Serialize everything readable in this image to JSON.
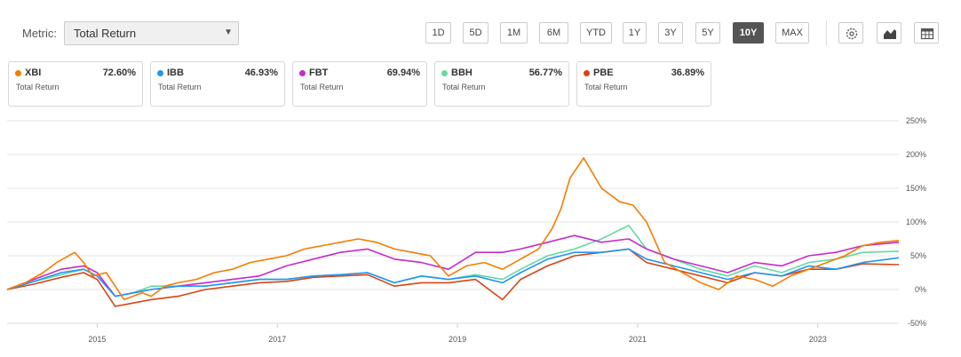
{
  "metric": {
    "label": "Metric:",
    "value": "Total Return"
  },
  "ranges": [
    "1D",
    "5D",
    "1M",
    "6M",
    "YTD",
    "1Y",
    "3Y",
    "5Y",
    "10Y",
    "MAX"
  ],
  "active_range": "10Y",
  "tools": [
    {
      "name": "settings-gear-icon"
    },
    {
      "name": "chart-type-icon"
    },
    {
      "name": "table-view-icon"
    }
  ],
  "legend": [
    {
      "ticker": "XBI",
      "value": "72.60%",
      "sub": "Total Return",
      "color": "#f57c00"
    },
    {
      "ticker": "IBB",
      "value": "46.93%",
      "sub": "Total Return",
      "color": "#2196f3"
    },
    {
      "ticker": "FBT",
      "value": "69.94%",
      "sub": "Total Return",
      "color": "#c62bc9"
    },
    {
      "ticker": "BBH",
      "value": "56.77%",
      "sub": "Total Return",
      "color": "#66d9a0"
    },
    {
      "ticker": "PBE",
      "value": "36.89%",
      "sub": "Total Return",
      "color": "#d84315"
    }
  ],
  "chart_data": {
    "type": "line",
    "x_ticks": [
      "2015",
      "2017",
      "2019",
      "2021",
      "2023"
    ],
    "y_ticks": [
      "250%",
      "200%",
      "150%",
      "100%",
      "50%",
      "0%",
      "-50%"
    ],
    "ylim": [
      -50,
      250
    ],
    "xlim": [
      2014.0,
      2023.9
    ],
    "grid": true,
    "series": [
      {
        "name": "XBI",
        "color": "#f57c00",
        "x": [
          2014.0,
          2014.2,
          2014.4,
          2014.55,
          2014.75,
          2014.85,
          2014.95,
          2015.1,
          2015.3,
          2015.5,
          2015.6,
          2015.75,
          2015.9,
          2016.1,
          2016.3,
          2016.5,
          2016.7,
          2016.9,
          2017.1,
          2017.3,
          2017.5,
          2017.7,
          2017.9,
          2018.1,
          2018.3,
          2018.5,
          2018.7,
          2018.9,
          2019.1,
          2019.3,
          2019.5,
          2019.7,
          2019.9,
          2020.05,
          2020.15,
          2020.25,
          2020.4,
          2020.6,
          2020.8,
          2020.95,
          2021.1,
          2021.3,
          2021.5,
          2021.7,
          2021.9,
          2022.1,
          2022.3,
          2022.5,
          2022.7,
          2022.9,
          2023.1,
          2023.3,
          2023.5,
          2023.7,
          2023.9
        ],
        "y": [
          0,
          10,
          25,
          40,
          55,
          40,
          20,
          25,
          -15,
          -5,
          -10,
          5,
          10,
          15,
          25,
          30,
          40,
          45,
          50,
          60,
          65,
          70,
          75,
          70,
          60,
          55,
          50,
          20,
          35,
          40,
          30,
          45,
          60,
          90,
          120,
          165,
          195,
          150,
          130,
          125,
          100,
          40,
          25,
          10,
          0,
          20,
          15,
          5,
          20,
          30,
          40,
          50,
          65,
          70,
          72.6
        ]
      },
      {
        "name": "IBB",
        "color": "#2196f3",
        "x": [
          2014.0,
          2014.3,
          2014.6,
          2014.85,
          2015.0,
          2015.2,
          2015.4,
          2015.6,
          2015.9,
          2016.2,
          2016.5,
          2016.8,
          2017.1,
          2017.4,
          2017.7,
          2018.0,
          2018.3,
          2018.6,
          2018.9,
          2019.2,
          2019.5,
          2019.7,
          2020.0,
          2020.3,
          2020.6,
          2020.9,
          2021.1,
          2021.4,
          2021.7,
          2022.0,
          2022.3,
          2022.6,
          2022.9,
          2023.2,
          2023.5,
          2023.9
        ],
        "y": [
          0,
          12,
          25,
          30,
          20,
          -10,
          -5,
          0,
          5,
          5,
          10,
          15,
          15,
          20,
          22,
          25,
          10,
          20,
          15,
          20,
          10,
          25,
          45,
          55,
          55,
          60,
          45,
          35,
          25,
          15,
          25,
          20,
          35,
          30,
          40,
          46.93
        ]
      },
      {
        "name": "FBT",
        "color": "#c62bc9",
        "x": [
          2014.0,
          2014.3,
          2014.6,
          2014.85,
          2015.0,
          2015.2,
          2015.4,
          2015.6,
          2015.9,
          2016.2,
          2016.5,
          2016.8,
          2017.1,
          2017.4,
          2017.7,
          2018.0,
          2018.3,
          2018.6,
          2018.9,
          2019.2,
          2019.5,
          2019.7,
          2020.0,
          2020.3,
          2020.6,
          2020.9,
          2021.1,
          2021.4,
          2021.7,
          2022.0,
          2022.3,
          2022.6,
          2022.9,
          2023.2,
          2023.5,
          2023.9
        ],
        "y": [
          0,
          15,
          30,
          35,
          25,
          -10,
          -5,
          0,
          5,
          10,
          15,
          20,
          35,
          45,
          55,
          60,
          45,
          40,
          30,
          55,
          55,
          60,
          70,
          80,
          70,
          75,
          60,
          45,
          35,
          25,
          40,
          35,
          50,
          55,
          65,
          69.94
        ]
      },
      {
        "name": "BBH",
        "color": "#66d9a0",
        "x": [
          2014.0,
          2014.3,
          2014.6,
          2014.85,
          2015.0,
          2015.2,
          2015.4,
          2015.6,
          2015.9,
          2016.2,
          2016.5,
          2016.8,
          2017.1,
          2017.4,
          2017.7,
          2018.0,
          2018.3,
          2018.6,
          2018.9,
          2019.2,
          2019.5,
          2019.7,
          2020.0,
          2020.3,
          2020.6,
          2020.9,
          2021.1,
          2021.4,
          2021.7,
          2022.0,
          2022.3,
          2022.6,
          2022.9,
          2023.2,
          2023.5,
          2023.9
        ],
        "y": [
          0,
          12,
          22,
          30,
          20,
          -10,
          -5,
          5,
          5,
          5,
          10,
          15,
          15,
          20,
          22,
          25,
          10,
          20,
          15,
          22,
          15,
          30,
          50,
          60,
          75,
          95,
          60,
          45,
          30,
          20,
          35,
          25,
          40,
          45,
          55,
          56.77
        ]
      },
      {
        "name": "PBE",
        "color": "#d84315",
        "x": [
          2014.0,
          2014.3,
          2014.6,
          2014.85,
          2015.0,
          2015.2,
          2015.4,
          2015.6,
          2015.9,
          2016.2,
          2016.5,
          2016.8,
          2017.1,
          2017.4,
          2017.7,
          2018.0,
          2018.3,
          2018.6,
          2018.9,
          2019.2,
          2019.5,
          2019.7,
          2020.0,
          2020.3,
          2020.6,
          2020.9,
          2021.1,
          2021.4,
          2021.7,
          2022.0,
          2022.3,
          2022.6,
          2022.9,
          2023.2,
          2023.5,
          2023.9
        ],
        "y": [
          0,
          8,
          18,
          25,
          15,
          -25,
          -20,
          -15,
          -10,
          0,
          5,
          10,
          12,
          18,
          20,
          22,
          5,
          10,
          10,
          15,
          -15,
          15,
          35,
          50,
          55,
          60,
          40,
          30,
          20,
          10,
          25,
          20,
          30,
          30,
          38,
          36.89
        ]
      }
    ]
  }
}
